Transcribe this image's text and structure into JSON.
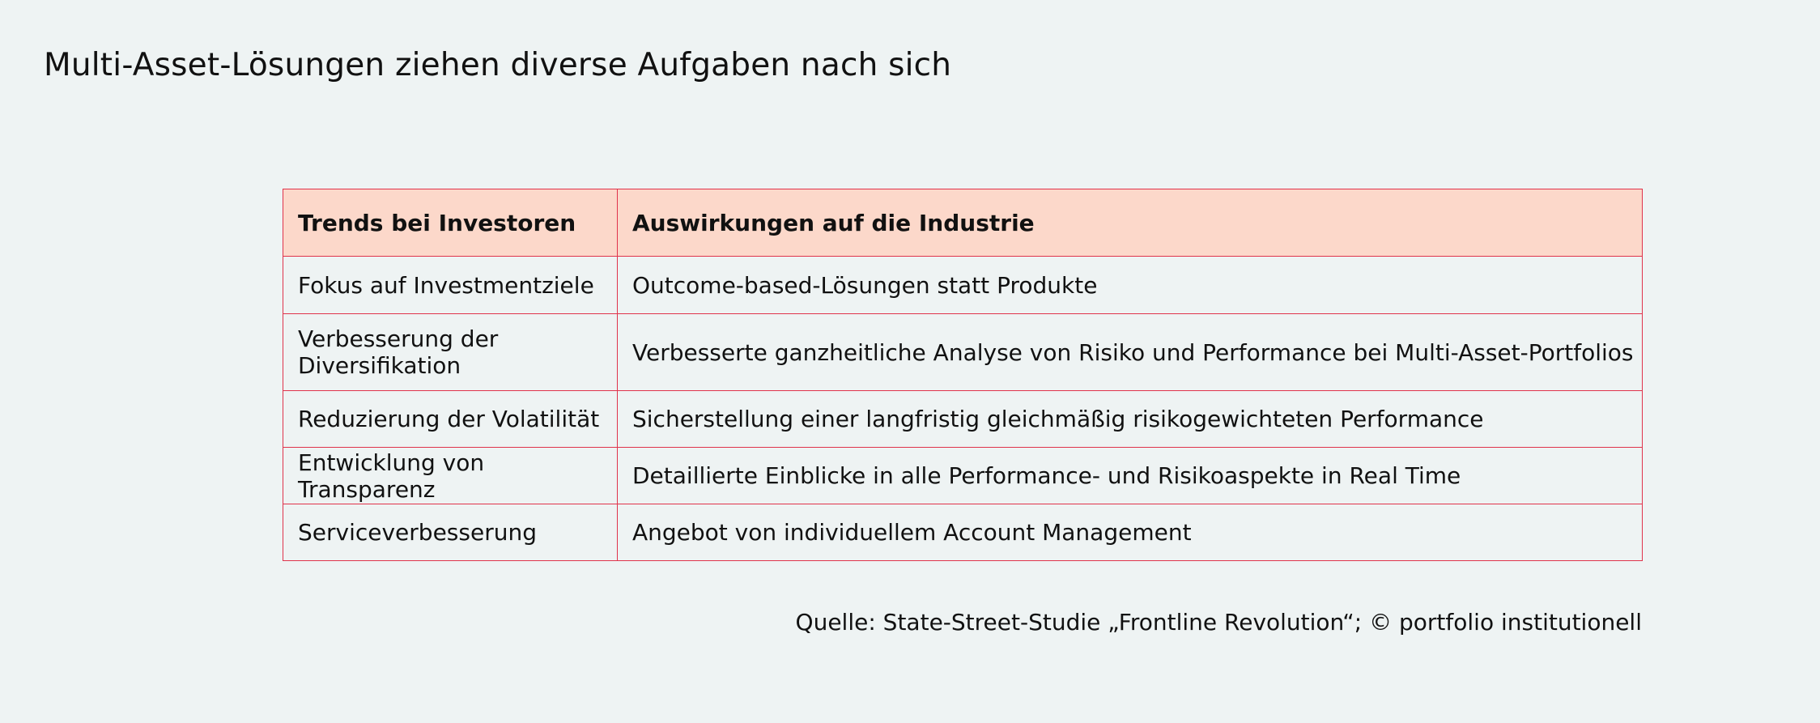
{
  "title": "Multi-Asset-Lösungen ziehen diverse Aufgaben nach sich",
  "table": {
    "headers": [
      "Trends bei Investoren",
      "Auswirkungen auf die Industrie"
    ],
    "rows": [
      [
        "Fokus auf Investmentziele",
        "Outcome-based-Lösungen statt Produkte"
      ],
      [
        "Verbesserung der Diversifikation",
        "Verbesserte ganzheitliche Analyse von Risiko und Performance bei Multi-Asset-Portfolios"
      ],
      [
        "Reduzierung der Volatilität",
        "Sicherstellung einer langfristig gleichmäßig risikogewichteten Performance"
      ],
      [
        "Entwicklung von Transparenz",
        "Detaillierte Einblicke in alle Performance- und Risikoaspekte in Real Time"
      ],
      [
        "Serviceverbesserung",
        "Angebot von individuellem Account Management"
      ]
    ]
  },
  "source": "Quelle: State-Street-Studie „Frontline Revolution“; © portfolio institutionell",
  "colors": {
    "background": "#eef3f3",
    "header_fill": "#fcd8ca",
    "border": "#e0334b",
    "text": "#111111"
  }
}
